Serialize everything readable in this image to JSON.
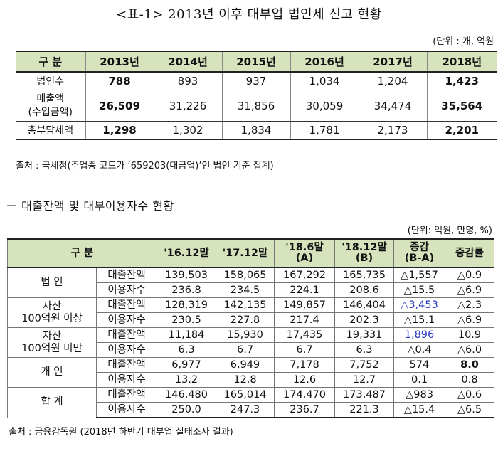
{
  "table1": {
    "title": "<표-1> 2013년 이후 대부업 법인세 신고 현황",
    "unit": "(단위 : 개, 억원",
    "header": [
      "구  분",
      "2013년",
      "2014년",
      "2015년",
      "2016년",
      "2017년",
      "2018년"
    ],
    "rows": [
      {
        "label": "법인수",
        "values": [
          "788",
          "893",
          "937",
          "1,034",
          "1,204",
          "1,423"
        ]
      },
      {
        "label_line1": "매출액",
        "label_line2": "(수입금액)",
        "values": [
          "26,509",
          "31,226",
          "31,856",
          "30,059",
          "34,474",
          "35,564"
        ]
      },
      {
        "label": "총부담세액",
        "values": [
          "1,298",
          "1,302",
          "1,834",
          "1,781",
          "2,173",
          "2,201"
        ]
      }
    ],
    "source": "출처 : 국세청(주업종 코드가 ‘659203(대금업)’인 법인 기준 집계)"
  },
  "table2": {
    "title": "－ 대출잔액 및 대부이용자수 현황",
    "unit": "(단위: 억원, 만명, %)",
    "header": {
      "category": "구  분",
      "c1": "'16.12말",
      "c2": "'17.12말",
      "c3_line1": "'18.6말",
      "c3_line2": "(A)",
      "c4_line1": "'18.12말",
      "c4_line2": "(B)",
      "c5_line1": "증감",
      "c5_line2": "(B-A)",
      "c6": "증감률"
    },
    "groups": [
      {
        "label_line1": "법 인",
        "label_line2": "",
        "rows": [
          {
            "sub": "대출잔액",
            "values": [
              "139,503",
              "158,065",
              "167,292",
              "165,735",
              "△1,557",
              "△0.9"
            ]
          },
          {
            "sub": "이용자수",
            "values": [
              "236.8",
              "234.5",
              "224.1",
              "208.6",
              "△15.5",
              "△6.9"
            ]
          }
        ]
      },
      {
        "label_line1": "자산",
        "label_line2": "100억원 이상",
        "rows": [
          {
            "sub": "대출잔액",
            "values": [
              "128,319",
              "142,135",
              "149,857",
              "146,404",
              "△3,453",
              "△2.3"
            ]
          },
          {
            "sub": "이용자수",
            "values": [
              "230.5",
              "227.8",
              "217.4",
              "202.3",
              "△15.1",
              "△6.9"
            ]
          }
        ]
      },
      {
        "label_line1": "자산",
        "label_line2": "100억원 미만",
        "rows": [
          {
            "sub": "대출잔액",
            "values": [
              "11,184",
              "15,930",
              "17,435",
              "19,331",
              "1,896",
              "10.9"
            ]
          },
          {
            "sub": "이용자수",
            "values": [
              "6.3",
              "6.7",
              "6.7",
              "6.3",
              "△0.4",
              "△6.0"
            ]
          }
        ]
      },
      {
        "label_line1": "개 인",
        "label_line2": "",
        "rows": [
          {
            "sub": "대출잔액",
            "values": [
              "6,977",
              "6,949",
              "7,178",
              "7,752",
              "574",
              "8.0"
            ]
          },
          {
            "sub": "이용자수",
            "values": [
              "13.2",
              "12.8",
              "12.6",
              "12.7",
              "0.1",
              "0.8"
            ]
          }
        ]
      },
      {
        "label_line1": "합 계",
        "label_line2": "",
        "rows": [
          {
            "sub": "대출잔액",
            "values": [
              "146,480",
              "165,014",
              "174,470",
              "173,487",
              "△983",
              "△0.6"
            ]
          },
          {
            "sub": "이용자수",
            "values": [
              "250.0",
              "247.3",
              "236.7",
              "221.3",
              "△15.4",
              "△6.5"
            ]
          }
        ]
      }
    ],
    "source": "출처 : 금융감독원 (2018년 하반기 대부업 실태조사 결과)"
  },
  "colors": {
    "header_bg": "#d6e3bc",
    "highlight_blue": "#2b3cc4"
  }
}
